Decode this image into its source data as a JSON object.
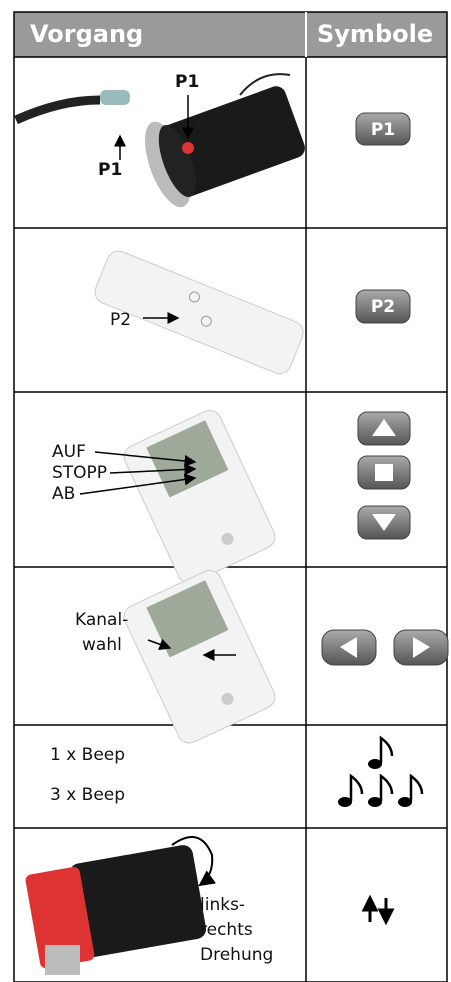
{
  "header": {
    "columns": [
      "Vorgang",
      "Symbole"
    ]
  },
  "rows": [
    {
      "labels": [
        "P1",
        "P1"
      ],
      "symbol": "P1"
    },
    {
      "labels": [
        "P2"
      ],
      "symbol": "P2"
    },
    {
      "labels": [
        "AUF",
        "STOPP",
        "AB"
      ]
    },
    {
      "labels": [
        "Kanal-",
        "wahl"
      ]
    },
    {
      "labels": [
        "1 x Beep",
        "3 x Beep"
      ]
    },
    {
      "labels": [
        "links-",
        "rechts",
        "Drehung"
      ]
    }
  ]
}
